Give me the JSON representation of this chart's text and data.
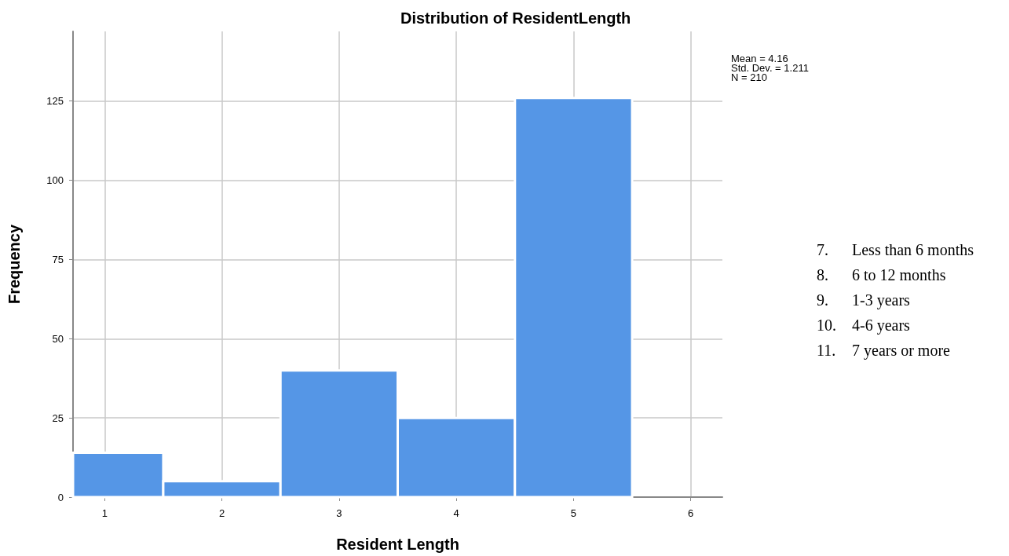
{
  "chart_data": {
    "type": "histogram",
    "title": "Distribution of ResidentLength",
    "xlabel": "Resident Length",
    "ylabel": "Frequency",
    "bins": [
      0.73,
      1.5,
      2.5,
      3.5,
      4.5,
      5.5
    ],
    "values": [
      14,
      5,
      40,
      25,
      126
    ],
    "color": "#5596e6",
    "xlim": [
      0.73,
      6.27
    ],
    "xticks": [
      1,
      2,
      3,
      4,
      5,
      6
    ],
    "ylim": [
      0,
      147
    ],
    "yticks": [
      0,
      25,
      50,
      75,
      100,
      125
    ],
    "grid": true,
    "annotations": [
      "Mean = 4.16\nStd. Dev. = 1.211\nN = 210",
      "7. Less than 6 months\n8. 6 to 12 months\n9. 1-3 years\n10. 4-6 years\n11. 7 years or more"
    ]
  }
}
